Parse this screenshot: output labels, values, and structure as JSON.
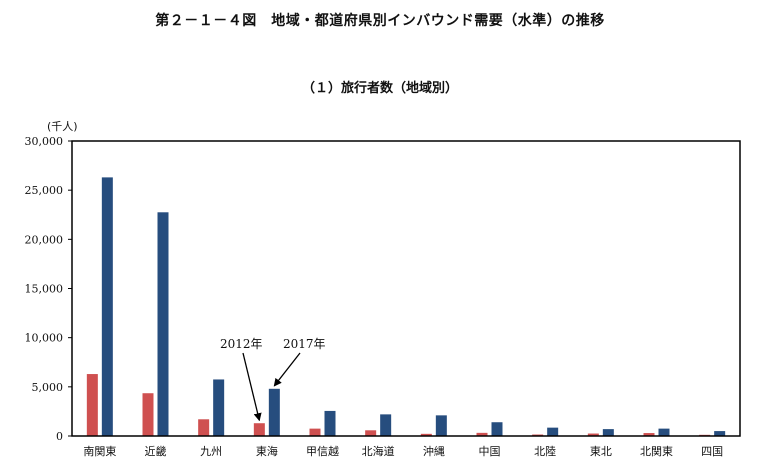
{
  "title": "第２－１－４図　地域・都道府県別インバウンド需要（水準）の推移",
  "subtitle": "（１）旅行者数（地域別）",
  "colors": {
    "series_2012": "#cf5050",
    "series_2017": "#264d7e",
    "axis": "#000000"
  },
  "chart_data": {
    "type": "bar",
    "unit_label": "(千人)",
    "categories": [
      "南関東",
      "近畿",
      "九州",
      "東海",
      "甲信越",
      "北海道",
      "沖縄",
      "中国",
      "北陸",
      "東北",
      "北関東",
      "四国"
    ],
    "series": [
      {
        "name": "2012年",
        "values": [
          6300,
          4350,
          1700,
          1300,
          750,
          580,
          220,
          320,
          150,
          250,
          300,
          120
        ]
      },
      {
        "name": "2017年",
        "values": [
          26300,
          22750,
          5750,
          4800,
          2550,
          2200,
          2100,
          1400,
          850,
          700,
          750,
          500
        ]
      }
    ],
    "ylim": [
      0,
      30000
    ],
    "yticks": [
      0,
      5000,
      10000,
      15000,
      20000,
      25000,
      30000
    ],
    "ytick_labels": [
      "0",
      "5,000",
      "10,000",
      "15,000",
      "20,000",
      "25,000",
      "30,000"
    ],
    "annotations": [
      {
        "text": "2012年",
        "series": 0,
        "category": "東海"
      },
      {
        "text": "2017年",
        "series": 1,
        "category": "東海"
      }
    ],
    "grid": false,
    "legend": "none"
  }
}
